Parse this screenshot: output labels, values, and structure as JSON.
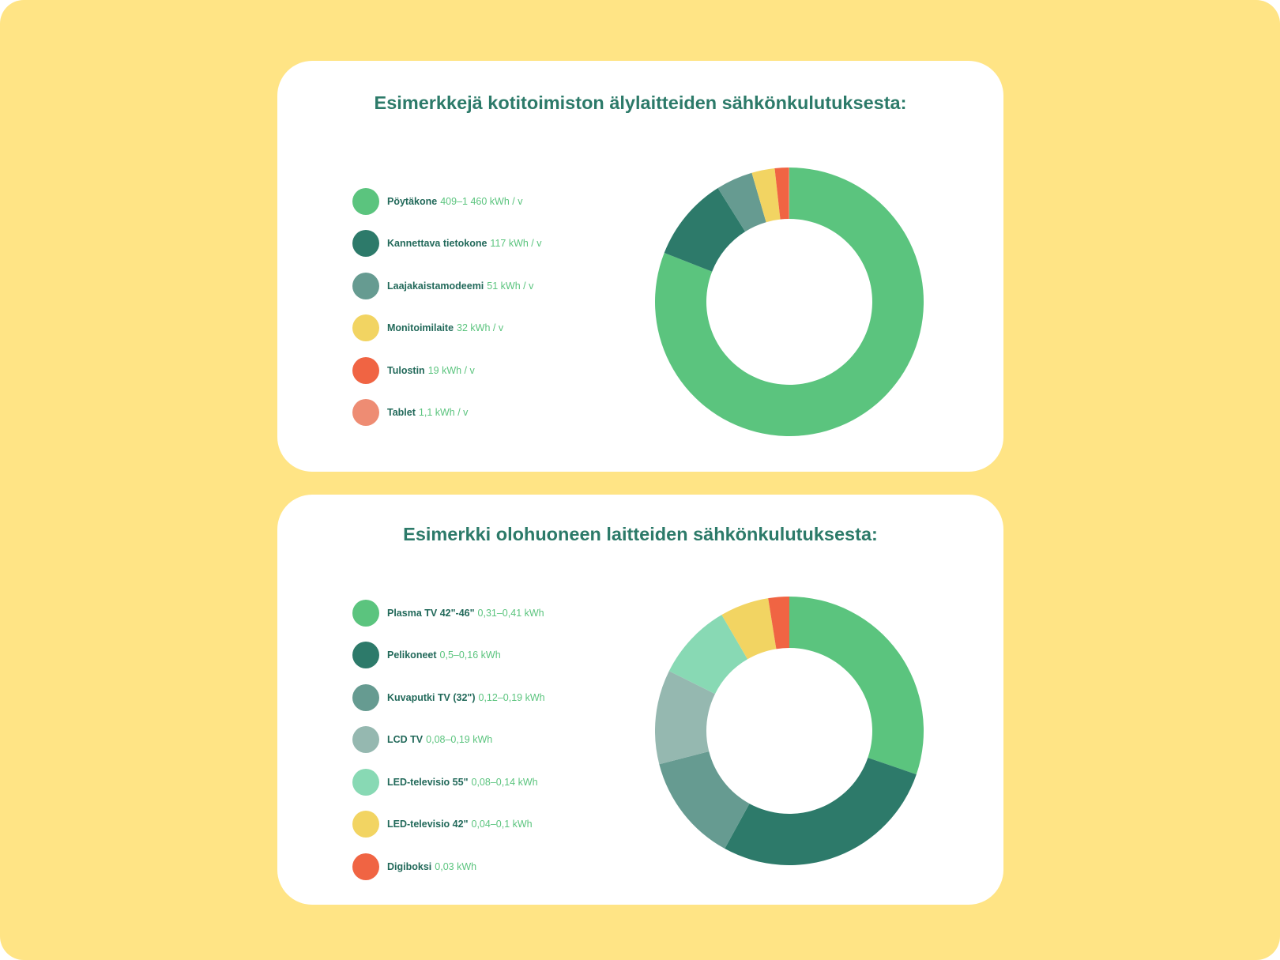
{
  "chart_data": [
    {
      "type": "donut",
      "title": "Esimerkkejä kotitoimiston älylaitteiden sähkönkulutuksesta:",
      "legend_position": "left",
      "series": [
        {
          "name": "Pöytäkone",
          "label": "409–1 460 kWh / v",
          "value": 934.5,
          "color": "#5bc47e"
        },
        {
          "name": "Kannettava tietokone",
          "label": "117 kWh / v",
          "value": 117,
          "color": "#2d7a6a"
        },
        {
          "name": "Laajakaistamodeemi",
          "label": "51 kWh / v",
          "value": 51,
          "color": "#669b91"
        },
        {
          "name": "Monitoimilaite",
          "label": "32 kWh / v",
          "value": 32,
          "color": "#f2d462"
        },
        {
          "name": "Tulostin",
          "label": "19 kWh / v",
          "value": 19,
          "color": "#f06443"
        },
        {
          "name": "Tablet",
          "label": "1,1 kWh / v",
          "value": 1.1,
          "color": "#ee8c73"
        }
      ]
    },
    {
      "type": "donut",
      "title": "Esimerkki olohuoneen laitteiden sähkönkulutuksesta:",
      "legend_position": "left",
      "series": [
        {
          "name": "Plasma TV 42\"-46\"",
          "label": "0,31–0,41 kWh",
          "value": 0.36,
          "color": "#5bc47e"
        },
        {
          "name": "Pelikoneet",
          "label": "0,5–0,16 kWh",
          "value": 0.33,
          "color": "#2d7a6a"
        },
        {
          "name": "Kuvaputki TV (32\")",
          "label": "0,12–0,19 kWh",
          "value": 0.155,
          "color": "#669b91"
        },
        {
          "name": "LCD TV",
          "label": "0,08–0,19 kWh",
          "value": 0.135,
          "color": "#95b8b0"
        },
        {
          "name": "LED-televisio 55\"",
          "label": "0,08–0,14 kWh",
          "value": 0.11,
          "color": "#88d9b4"
        },
        {
          "name": "LED-televisio 42\"",
          "label": "0,04–0,1 kWh",
          "value": 0.07,
          "color": "#f2d462"
        },
        {
          "name": "Digiboksi",
          "label": "0,03 kWh",
          "value": 0.03,
          "color": "#f06443"
        }
      ]
    }
  ]
}
